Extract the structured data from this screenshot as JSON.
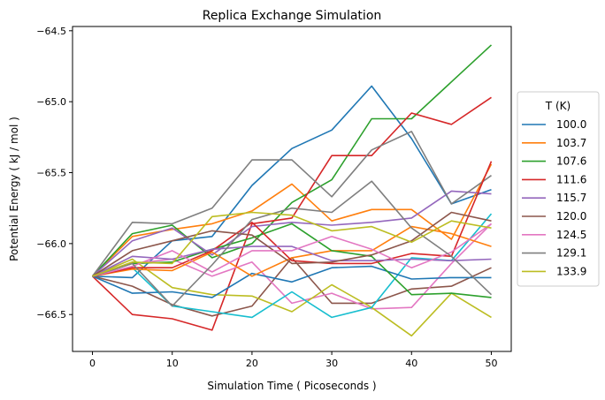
{
  "chart_data": {
    "type": "line",
    "title": "Replica Exchange Simulation",
    "xlabel": "Simulation Time ( Picoseconds )",
    "ylabel": "Potential Energy ( kJ / mol )",
    "xlim": [
      -2.5,
      52.5
    ],
    "ylim": [
      -66.76,
      -64.47
    ],
    "xticks": [
      0,
      10,
      20,
      30,
      40,
      50
    ],
    "yticks": [
      -64.5,
      -65.0,
      -65.5,
      -66.0,
      -66.5
    ],
    "ytick_labels": [
      "−64.5",
      "−65.0",
      "−65.5",
      "−66.0",
      "−66.5"
    ],
    "grid": false,
    "legend": {
      "title": "T (K)",
      "placement": "center-right outside"
    },
    "x": [
      0,
      5,
      10,
      15,
      20,
      25,
      30,
      35,
      40,
      45,
      50
    ],
    "series": [
      {
        "name": "100.0",
        "color": "#1f77b4",
        "values": [
          -66.23,
          -66.24,
          -65.98,
          -65.95,
          -65.59,
          -65.33,
          -65.2,
          -64.89,
          -65.26,
          -65.72,
          -65.62
        ]
      },
      {
        "name": "103.7",
        "color": "#ff7f0e",
        "values": [
          -66.23,
          -65.95,
          -65.9,
          -65.86,
          -65.77,
          -65.58,
          -65.84,
          -65.76,
          -65.76,
          -65.97,
          -65.44
        ]
      },
      {
        "name": "107.6",
        "color": "#2ca02c",
        "values": [
          -66.23,
          -65.93,
          -65.87,
          -66.1,
          -66.0,
          -65.71,
          -65.55,
          -65.12,
          -65.12,
          -64.86,
          -64.6
        ]
      },
      {
        "name": "111.6",
        "color": "#d62728",
        "values": [
          -66.23,
          -66.5,
          -66.53,
          -66.61,
          -65.86,
          -65.82,
          -65.38,
          -65.38,
          -65.08,
          -65.16,
          -64.97
        ]
      },
      {
        "name": "115.7",
        "color": "#9467bd",
        "values": [
          -66.23,
          -65.98,
          -65.89,
          -66.08,
          -65.88,
          -65.85,
          -65.87,
          -65.85,
          -65.82,
          -65.63,
          -65.65
        ]
      },
      {
        "name": "120.0",
        "color": "#8c564b",
        "values": [
          -66.23,
          -66.3,
          -66.43,
          -66.51,
          -66.44,
          -66.1,
          -66.42,
          -66.42,
          -66.32,
          -66.3,
          -66.17
        ]
      },
      {
        "name": "124.5",
        "color": "#e377c2",
        "values": [
          -66.23,
          -66.14,
          -66.11,
          -66.23,
          -66.13,
          -66.42,
          -66.35,
          -66.46,
          -66.45,
          -66.14,
          -65.86
        ]
      },
      {
        "name": "129.1",
        "color": "#7f7f7f",
        "values": [
          -66.23,
          -65.85,
          -65.86,
          -65.75,
          -65.41,
          -65.41,
          -65.67,
          -65.34,
          -65.21,
          -65.72,
          -65.52
        ]
      },
      {
        "name": "133.9",
        "color": "#bcbd22",
        "values": [
          -66.23,
          -66.11,
          -66.31,
          -66.36,
          -66.37,
          -66.48,
          -66.29,
          -66.45,
          -66.65,
          -66.35,
          -66.52
        ]
      },
      {
        "name": "",
        "color": "#17becf",
        "values": [
          -66.23,
          -66.17,
          -66.44,
          -66.48,
          -66.52,
          -66.34,
          -66.52,
          -66.45,
          -66.1,
          -66.12,
          -65.79
        ]
      },
      {
        "name": "",
        "color": "#1f77b4",
        "values": [
          -66.23,
          -66.35,
          -66.34,
          -66.38,
          -66.21,
          -66.27,
          -66.17,
          -66.16,
          -66.25,
          -66.24,
          -66.24
        ]
      },
      {
        "name": "",
        "color": "#ff7f0e",
        "values": [
          -66.23,
          -66.18,
          -66.19,
          -66.06,
          -66.23,
          -66.1,
          -66.05,
          -66.05,
          -65.88,
          -65.93,
          -66.02
        ]
      },
      {
        "name": "",
        "color": "#2ca02c",
        "values": [
          -66.23,
          -66.14,
          -66.13,
          -66.04,
          -65.96,
          -65.86,
          -66.05,
          -66.09,
          -66.36,
          -66.35,
          -66.38
        ]
      },
      {
        "name": "",
        "color": "#d62728",
        "values": [
          -66.23,
          -66.17,
          -66.17,
          -66.05,
          -65.85,
          -66.12,
          -66.14,
          -66.14,
          -66.07,
          -66.09,
          -65.42
        ]
      },
      {
        "name": "",
        "color": "#9467bd",
        "values": [
          -66.23,
          -66.09,
          -66.11,
          -66.04,
          -66.02,
          -66.02,
          -66.12,
          -66.12,
          -66.11,
          -66.12,
          -66.11
        ]
      },
      {
        "name": "",
        "color": "#8c564b",
        "values": [
          -66.23,
          -66.05,
          -65.98,
          -65.91,
          -65.94,
          -66.14,
          -66.13,
          -66.08,
          -65.98,
          -65.78,
          -65.84
        ]
      },
      {
        "name": "",
        "color": "#e377c2",
        "values": [
          -66.23,
          -66.16,
          -66.05,
          -66.2,
          -66.05,
          -66.05,
          -65.95,
          -66.04,
          -66.17,
          -66.06,
          -65.86
        ]
      },
      {
        "name": "",
        "color": "#7f7f7f",
        "values": [
          -66.23,
          -66.14,
          -66.44,
          -66.15,
          -65.83,
          -65.75,
          -65.78,
          -65.56,
          -65.89,
          -66.09,
          -66.36
        ]
      },
      {
        "name": "",
        "color": "#bcbd22",
        "values": [
          -66.23,
          -66.13,
          -66.14,
          -65.81,
          -65.78,
          -65.8,
          -65.91,
          -65.88,
          -65.99,
          -65.84,
          -65.89
        ]
      }
    ]
  }
}
